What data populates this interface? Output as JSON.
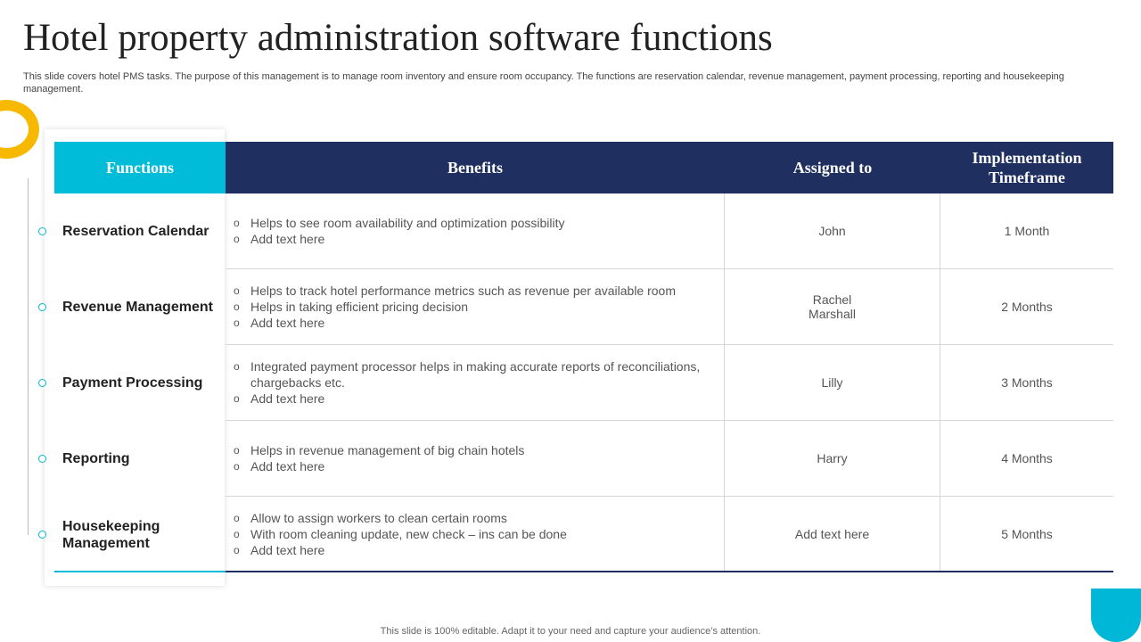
{
  "header": {
    "title": "Hotel property administration software functions",
    "subtitle": "This slide covers hotel PMS tasks. The purpose of this management is to manage room inventory and ensure room occupancy. The functions are reservation calendar, revenue management, payment processing, reporting and housekeeping management."
  },
  "table": {
    "columns": [
      "Functions",
      "Benefits",
      "Assigned to",
      "Implementation Timeframe"
    ],
    "rows": [
      {
        "function": "Reservation Calendar",
        "benefits": [
          "Helps to see room availability  and optimization possibility",
          "Add text here"
        ],
        "assigned": "John",
        "timeframe": "1 Month"
      },
      {
        "function": "Revenue Management",
        "benefits": [
          "Helps to track hotel performance metrics such as revenue per available room",
          "Helps in taking efficient pricing decision",
          "Add text here"
        ],
        "assigned": "Rachel\nMarshall",
        "timeframe": "2 Months"
      },
      {
        "function": "Payment Processing",
        "benefits": [
          "Integrated payment processor helps in making accurate reports of reconciliations, chargebacks etc.",
          "Add text here"
        ],
        "assigned": "Lilly",
        "timeframe": "3 Months"
      },
      {
        "function": "Reporting",
        "benefits": [
          "Helps in revenue management of big chain hotels",
          "Add text here"
        ],
        "assigned": "Harry",
        "timeframe": "4 Months"
      },
      {
        "function": "Housekeeping Management",
        "benefits": [
          "Allow to assign workers to clean certain rooms",
          "With room cleaning update, new check – ins can be done",
          "Add text here"
        ],
        "assigned": "Add text here",
        "timeframe": "5 Months"
      }
    ]
  },
  "footer": {
    "note": "This slide is 100% editable. Adapt it to your need and capture your audience’s attention."
  }
}
